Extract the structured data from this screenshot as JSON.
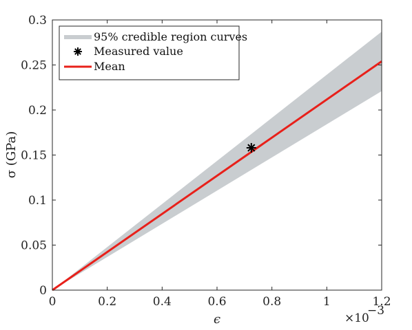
{
  "chart_data": {
    "type": "line",
    "title": "",
    "xlabel": "ϵ",
    "ylabel": "σ (GPa)",
    "x_multiplier_label": "×10",
    "x_multiplier_exponent": "−3",
    "xlim": [
      0,
      1.2
    ],
    "ylim": [
      0,
      0.3
    ],
    "x_ticks": [
      0,
      0.2,
      0.4,
      0.6,
      0.8,
      1,
      1.2
    ],
    "x_tick_labels": [
      "0",
      "0.2",
      "0.4",
      "0.6",
      "0.8",
      "1",
      "1.2"
    ],
    "y_ticks": [
      0,
      0.05,
      0.1,
      0.15,
      0.2,
      0.25,
      0.3
    ],
    "y_tick_labels": [
      "0",
      "0.05",
      "0.1",
      "0.15",
      "0.2",
      "0.25",
      "0.3"
    ],
    "grid": false,
    "legend_position": "top-left",
    "series": [
      {
        "name": "95% credible region curves",
        "kind": "band",
        "color": "#c9cdd0",
        "x": [
          0,
          1.2
        ],
        "lower": [
          0,
          0.221
        ],
        "upper": [
          0,
          0.287
        ]
      },
      {
        "name": "Measured value",
        "kind": "marker",
        "color": "#000000",
        "x": [
          0.725
        ],
        "y": [
          0.158
        ]
      },
      {
        "name": "Mean",
        "kind": "line",
        "color": "#e8201a",
        "x": [
          0,
          1.2
        ],
        "y": [
          0,
          0.254
        ]
      }
    ]
  }
}
